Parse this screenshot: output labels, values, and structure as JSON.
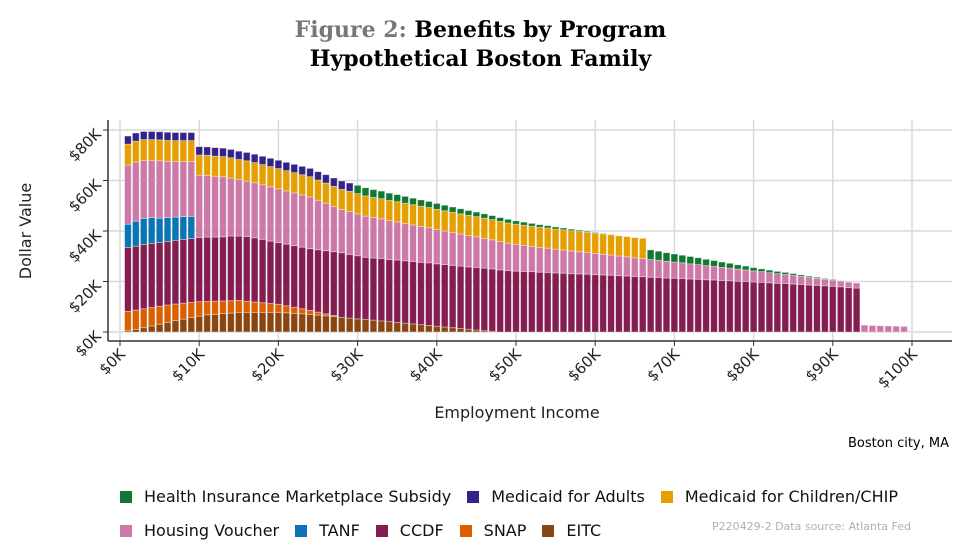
{
  "title": {
    "prefix": "Figure 2:",
    "line1": "Benefits by Program",
    "line2": "Hypothetical Boston Family"
  },
  "caption": "Boston city, MA",
  "source_note": "P220429-2 Data source: Atlanta Fed",
  "chart_data": {
    "type": "bar",
    "stacked": true,
    "title": "Figure 2: Benefits by Program — Hypothetical Boston Family",
    "xlabel": "Employment Income",
    "ylabel": "Dollar Value",
    "x_ticks": [
      "$0K",
      "$10K",
      "$20K",
      "$30K",
      "$40K",
      "$50K",
      "$60K",
      "$70K",
      "$80K",
      "$90K",
      "$100K"
    ],
    "x_tick_values": [
      0,
      10,
      20,
      30,
      40,
      50,
      60,
      70,
      80,
      90,
      100
    ],
    "y_ticks": [
      "$0K",
      "$20K",
      "$40K",
      "$60K",
      "$80K"
    ],
    "y_tick_values": [
      0,
      20,
      40,
      60,
      80
    ],
    "xlim": [
      -1,
      105
    ],
    "ylim": [
      -1.5,
      84
    ],
    "grid": true,
    "legend_position": "bottom",
    "units": "thousands of dollars",
    "x": [
      1,
      2,
      3,
      4,
      5,
      6,
      7,
      8,
      9,
      10,
      11,
      12,
      13,
      14,
      15,
      16,
      17,
      18,
      19,
      20,
      21,
      22,
      23,
      24,
      25,
      26,
      27,
      28,
      29,
      30,
      31,
      32,
      33,
      34,
      35,
      36,
      37,
      38,
      39,
      40,
      41,
      42,
      43,
      44,
      45,
      46,
      47,
      48,
      49,
      50,
      51,
      52,
      53,
      54,
      55,
      56,
      57,
      58,
      59,
      60,
      61,
      62,
      63,
      64,
      65,
      66,
      67,
      68,
      69,
      70,
      71,
      72,
      73,
      74,
      75,
      76,
      77,
      78,
      79,
      80,
      81,
      82,
      83,
      84,
      85,
      86,
      87,
      88,
      89,
      90,
      91,
      92,
      93,
      94,
      95,
      96,
      97,
      98,
      99
    ],
    "series": [
      {
        "name": "EITC",
        "color": "#8B4513",
        "values": [
          0.5,
          1.0,
          1.7,
          2.4,
          3.1,
          3.8,
          4.5,
          5.1,
          5.7,
          6.3,
          6.8,
          7.0,
          7.3,
          7.5,
          7.8,
          7.8,
          7.8,
          7.8,
          7.8,
          7.8,
          7.6,
          7.4,
          7.2,
          7.0,
          6.7,
          6.4,
          6.1,
          5.8,
          5.5,
          5.2,
          5.0,
          4.7,
          4.4,
          4.1,
          3.8,
          3.5,
          3.2,
          2.9,
          2.6,
          2.3,
          2.0,
          1.7,
          1.4,
          1.1,
          0.8,
          0.5,
          0.2,
          0,
          0,
          0,
          0,
          0,
          0,
          0,
          0,
          0,
          0,
          0,
          0,
          0,
          0,
          0,
          0,
          0,
          0,
          0,
          0,
          0,
          0,
          0,
          0,
          0,
          0,
          0,
          0,
          0,
          0,
          0,
          0,
          0,
          0,
          0,
          0,
          0,
          0,
          0,
          0,
          0,
          0,
          0,
          0,
          0,
          0,
          0,
          0,
          0,
          0,
          0,
          0
        ]
      },
      {
        "name": "SNAP",
        "color": "#D95F02",
        "values": [
          7.7,
          7.7,
          7.5,
          7.3,
          7.1,
          6.9,
          6.6,
          6.3,
          6.0,
          5.7,
          5.3,
          5.2,
          5.0,
          4.9,
          4.7,
          4.4,
          4.1,
          3.8,
          3.5,
          3.2,
          2.8,
          2.4,
          2.0,
          1.6,
          1.2,
          0.8,
          0.4,
          0,
          0,
          0,
          0,
          0,
          0,
          0,
          0,
          0,
          0,
          0,
          0,
          0,
          0,
          0,
          0,
          0,
          0,
          0,
          0,
          0,
          0,
          0,
          0,
          0,
          0,
          0,
          0,
          0,
          0,
          0,
          0,
          0,
          0,
          0,
          0,
          0,
          0,
          0,
          0,
          0,
          0,
          0,
          0,
          0,
          0,
          0,
          0,
          0,
          0,
          0,
          0,
          0,
          0,
          0,
          0,
          0,
          0,
          0,
          0,
          0,
          0,
          0,
          0,
          0,
          0,
          0,
          0,
          0,
          0,
          0,
          0
        ]
      },
      {
        "name": "CCDF",
        "color": "#851E50",
        "values": [
          25.3,
          25.3,
          25.5,
          25.4,
          25.3,
          25.2,
          25.2,
          25.3,
          25.3,
          25.4,
          25.5,
          25.4,
          25.4,
          25.6,
          25.5,
          25.6,
          25.4,
          25.1,
          24.7,
          24.4,
          24.4,
          24.4,
          24.4,
          24.4,
          24.7,
          25.0,
          25.3,
          25.6,
          25.2,
          25.0,
          24.6,
          24.6,
          24.7,
          24.6,
          24.7,
          24.7,
          24.7,
          24.7,
          24.8,
          24.7,
          24.7,
          24.7,
          24.7,
          24.7,
          24.8,
          24.8,
          24.8,
          24.6,
          24.3,
          24.1,
          24.0,
          23.9,
          23.7,
          23.6,
          23.4,
          23.3,
          23.1,
          23.0,
          22.9,
          22.7,
          22.6,
          22.5,
          22.3,
          22.2,
          22.0,
          21.9,
          21.7,
          21.6,
          21.4,
          21.3,
          21.2,
          21.0,
          20.9,
          20.7,
          20.6,
          20.4,
          20.3,
          20.1,
          20.0,
          19.8,
          19.7,
          19.5,
          19.3,
          19.2,
          19.0,
          18.8,
          18.6,
          18.5,
          18.3,
          18.1,
          17.9,
          17.6,
          17.4,
          0,
          0,
          0,
          0,
          0,
          0
        ]
      },
      {
        "name": "TANF",
        "color": "#0A74B4",
        "values": [
          9.2,
          9.9,
          10.3,
          10.2,
          9.6,
          9.4,
          9.2,
          9.0,
          8.8,
          0,
          0,
          0,
          0,
          0,
          0,
          0,
          0,
          0,
          0,
          0,
          0,
          0,
          0,
          0,
          0,
          0,
          0,
          0,
          0,
          0,
          0,
          0,
          0,
          0,
          0,
          0,
          0,
          0,
          0,
          0,
          0,
          0,
          0,
          0,
          0,
          0,
          0,
          0,
          0,
          0,
          0,
          0,
          0,
          0,
          0,
          0,
          0,
          0,
          0,
          0,
          0,
          0,
          0,
          0,
          0,
          0,
          0,
          0,
          0,
          0,
          0,
          0,
          0,
          0,
          0,
          0,
          0,
          0,
          0,
          0,
          0,
          0,
          0,
          0,
          0,
          0,
          0,
          0,
          0,
          0,
          0,
          0,
          0,
          0,
          0,
          0,
          0,
          0,
          0
        ]
      },
      {
        "name": "Housing Voucher",
        "color": "#CC79A7",
        "values": [
          23.4,
          23.4,
          22.9,
          22.6,
          22.7,
          22.3,
          22.0,
          21.8,
          21.7,
          24.7,
          24.4,
          24.1,
          23.8,
          23.0,
          22.3,
          22.0,
          21.8,
          21.6,
          21.5,
          21.3,
          21.1,
          20.9,
          20.7,
          20.5,
          19.6,
          18.8,
          17.9,
          17.1,
          17.0,
          16.6,
          16.3,
          16.0,
          15.7,
          15.4,
          15.1,
          14.8,
          14.5,
          14.2,
          13.9,
          13.6,
          13.3,
          13.0,
          12.7,
          12.4,
          12.1,
          11.8,
          11.5,
          11.2,
          10.9,
          10.6,
          10.3,
          10.0,
          9.8,
          9.6,
          9.4,
          9.2,
          9.0,
          8.8,
          8.6,
          8.4,
          8.2,
          8.0,
          7.8,
          7.6,
          7.4,
          7.2,
          7.0,
          6.8,
          6.6,
          6.4,
          6.2,
          6.0,
          5.8,
          5.6,
          5.4,
          5.2,
          5.0,
          4.8,
          4.6,
          4.4,
          4.2,
          4.0,
          3.8,
          3.6,
          3.4,
          3.2,
          3.0,
          2.8,
          2.6,
          2.5,
          2.3,
          2.1,
          2.0,
          2.7,
          2.6,
          2.5,
          2.4,
          2.3,
          2.2
        ]
      },
      {
        "name": "Medicaid for Children/CHIP",
        "color": "#E69F00",
        "values": [
          8.3,
          8.3,
          8.3,
          8.3,
          8.3,
          8.3,
          8.3,
          8.3,
          8.3,
          8.0,
          8.0,
          8.0,
          8.0,
          8.0,
          8.0,
          8.0,
          8.0,
          8.0,
          8.0,
          8.0,
          8.0,
          8.0,
          8.0,
          8.0,
          8.0,
          8.0,
          8.0,
          8.0,
          8.0,
          8.0,
          8.0,
          8.0,
          8.0,
          8.0,
          8.0,
          8.0,
          8.0,
          8.0,
          8.0,
          8.0,
          8.0,
          8.0,
          8.0,
          8.0,
          8.0,
          8.0,
          8.0,
          8.0,
          8.0,
          8.0,
          8.0,
          8.0,
          8.0,
          8.0,
          8.0,
          8.0,
          8.0,
          8.0,
          8.0,
          8.0,
          8.0,
          8.0,
          8.0,
          8.0,
          8.0,
          8.0,
          0,
          0,
          0,
          0,
          0,
          0,
          0,
          0,
          0,
          0,
          0,
          0,
          0,
          0,
          0,
          0,
          0,
          0,
          0,
          0,
          0,
          0,
          0,
          0,
          0,
          0,
          0,
          0,
          0,
          0,
          0,
          0,
          0
        ]
      },
      {
        "name": "Medicaid for Adults",
        "color": "#332288",
        "values": [
          3.2,
          3.2,
          3.2,
          3.2,
          3.2,
          3.2,
          3.2,
          3.2,
          3.2,
          3.3,
          3.3,
          3.3,
          3.3,
          3.3,
          3.3,
          3.3,
          3.3,
          3.3,
          3.3,
          3.3,
          3.3,
          3.3,
          3.3,
          3.3,
          3.3,
          3.3,
          3.3,
          3.3,
          3.3,
          0,
          0,
          0,
          0,
          0,
          0,
          0,
          0,
          0,
          0,
          0,
          0,
          0,
          0,
          0,
          0,
          0,
          0,
          0,
          0,
          0,
          0,
          0,
          0,
          0,
          0,
          0,
          0,
          0,
          0,
          0,
          0,
          0,
          0,
          0,
          0,
          0,
          0,
          0,
          0,
          0,
          0,
          0,
          0,
          0,
          0,
          0,
          0,
          0,
          0,
          0,
          0,
          0,
          0,
          0,
          0,
          0,
          0,
          0,
          0,
          0,
          0,
          0,
          0,
          0,
          0,
          0,
          0,
          0,
          0
        ]
      },
      {
        "name": "Health Insurance Marketplace Subsidy",
        "color": "#117733",
        "values": [
          0,
          0,
          0,
          0,
          0,
          0,
          0,
          0,
          0,
          0,
          0,
          0,
          0,
          0,
          0,
          0,
          0,
          0,
          0,
          0,
          0,
          0,
          0,
          0,
          0,
          0,
          0,
          0,
          0,
          3.3,
          3.2,
          3.1,
          3.0,
          2.9,
          2.8,
          2.7,
          2.6,
          2.5,
          2.4,
          2.3,
          2.2,
          2.1,
          2.0,
          1.9,
          1.8,
          1.7,
          1.6,
          1.5,
          1.4,
          1.3,
          1.2,
          1.1,
          1.0,
          0.9,
          0.8,
          0.7,
          0.6,
          0.5,
          0.4,
          0.3,
          0.2,
          0.1,
          0,
          0,
          0,
          0,
          3.8,
          3.6,
          3.4,
          3.2,
          3.0,
          2.9,
          2.7,
          2.5,
          2.3,
          2.1,
          1.9,
          1.7,
          1.5,
          1.3,
          1.1,
          1.0,
          0.9,
          0.8,
          0.7,
          0.6,
          0.5,
          0.4,
          0.3,
          0.2,
          0.1,
          0.1,
          0,
          0,
          0,
          0,
          0,
          0,
          0
        ]
      }
    ]
  },
  "legend": {
    "row1": [
      {
        "name": "Health Insurance Marketplace Subsidy",
        "color": "#117733"
      },
      {
        "name": "Medicaid for Adults",
        "color": "#332288"
      },
      {
        "name": "Medicaid for Children/CHIP",
        "color": "#E69F00"
      }
    ],
    "row2": [
      {
        "name": "Housing Voucher",
        "color": "#CC79A7"
      },
      {
        "name": "TANF",
        "color": "#0A74B4"
      },
      {
        "name": "CCDF",
        "color": "#851E50"
      },
      {
        "name": "SNAP",
        "color": "#D95F02"
      },
      {
        "name": "EITC",
        "color": "#8B4513"
      }
    ]
  }
}
